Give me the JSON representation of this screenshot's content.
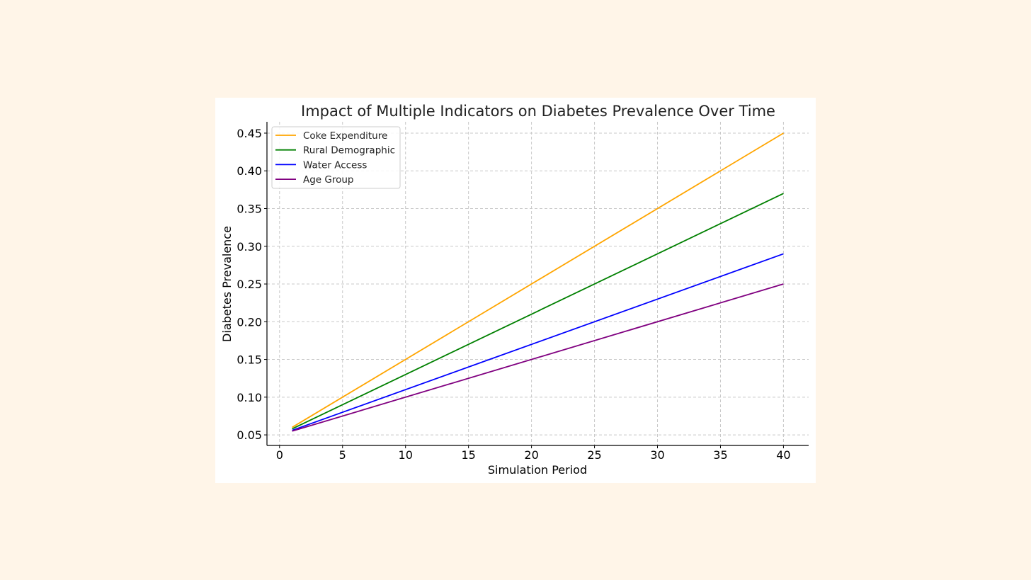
{
  "chart_data": {
    "type": "line",
    "title": "Impact of Multiple Indicators on Diabetes Prevalence Over Time",
    "xlabel": "Simulation Period",
    "ylabel": "Diabetes Prevalence",
    "xlim": [
      -1,
      42
    ],
    "ylim": [
      0.036,
      0.465
    ],
    "xticks": [
      0,
      5,
      10,
      15,
      20,
      25,
      30,
      35,
      40
    ],
    "yticks": [
      0.05,
      0.1,
      0.15,
      0.2,
      0.25,
      0.3,
      0.35,
      0.4,
      0.45
    ],
    "xtick_labels": [
      "0",
      "5",
      "10",
      "15",
      "20",
      "25",
      "30",
      "35",
      "40"
    ],
    "ytick_labels": [
      "0.05",
      "0.10",
      "0.15",
      "0.20",
      "0.25",
      "0.30",
      "0.35",
      "0.40",
      "0.45"
    ],
    "grid": true,
    "legend_position": "top-left",
    "x": [
      1,
      40
    ],
    "series": [
      {
        "name": "Coke Expenditure",
        "color": "#ffa500",
        "values": [
          0.06,
          0.45
        ]
      },
      {
        "name": "Rural Demographic",
        "color": "#008000",
        "values": [
          0.058,
          0.37
        ]
      },
      {
        "name": "Water Access",
        "color": "#0000ff",
        "values": [
          0.056,
          0.29
        ]
      },
      {
        "name": "Age Group",
        "color": "#800080",
        "values": [
          0.055,
          0.25
        ]
      }
    ]
  }
}
